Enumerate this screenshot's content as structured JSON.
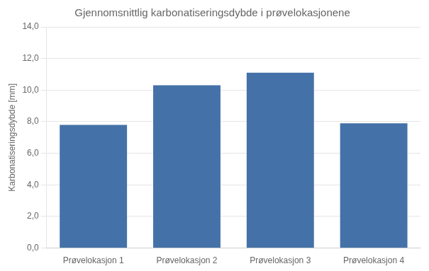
{
  "chart_data": {
    "type": "bar",
    "title": "Gjennomsnittlig karbonatiseringsdybde i prøvelokasjonene",
    "ylabel": "Karbonatiseringsdybde [mm]",
    "categories": [
      "Prøvelokasjon 1",
      "Prøvelokasjon 2",
      "Prøvelokasjon 3",
      "Prøvelokasjon 4"
    ],
    "values": [
      7.8,
      10.3,
      11.1,
      7.9
    ],
    "color": "#4472a8",
    "ylim": [
      0,
      14
    ],
    "yticks": [
      {
        "value": 0.0,
        "label": "0,0"
      },
      {
        "value": 2.0,
        "label": "2,0"
      },
      {
        "value": 4.0,
        "label": "4,0"
      },
      {
        "value": 6.0,
        "label": "6,0"
      },
      {
        "value": 8.0,
        "label": "8,0"
      },
      {
        "value": 10.0,
        "label": "10,0"
      },
      {
        "value": 12.0,
        "label": "12,0"
      },
      {
        "value": 14.0,
        "label": "14,0"
      }
    ],
    "grid": true
  }
}
